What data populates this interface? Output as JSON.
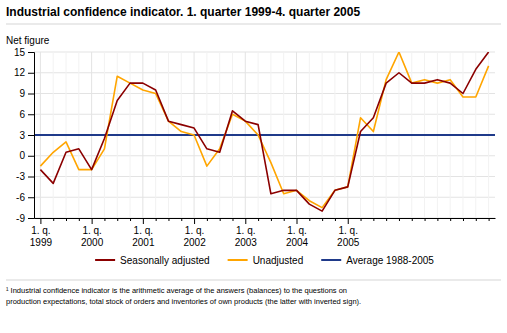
{
  "chart_data": {
    "type": "line",
    "title": "Industrial confidence indicator. 1. quarter 1999-4. quarter 2005",
    "y_label": "Net figure",
    "categories": [
      "1. q.\n1999",
      null,
      null,
      null,
      "1. q.\n2000",
      null,
      null,
      null,
      "1. q.\n2001",
      null,
      null,
      null,
      "1. q.\n2002",
      null,
      null,
      null,
      "1. q.\n2003",
      null,
      null,
      null,
      "1. q.\n2004",
      null,
      null,
      null,
      "1. q.\n2005",
      null,
      null,
      null,
      null,
      null,
      null,
      null,
      null,
      null,
      null,
      null
    ],
    "series": [
      {
        "name": "Seasonally adjusted",
        "color": "#8B0000",
        "values": [
          -2.0,
          -4.0,
          0.5,
          1.0,
          -2.0,
          2.5,
          8.0,
          10.5,
          10.5,
          9.5,
          5.0,
          4.5,
          4.0,
          1.0,
          0.5,
          6.5,
          5.0,
          4.5,
          -5.5,
          -5.0,
          -5.0,
          -7.0,
          -8.0,
          -5.0,
          -4.5,
          3.5,
          5.5,
          10.5,
          12.0,
          10.5,
          10.5,
          11.0,
          10.5,
          9.0,
          12.5,
          15.0
        ]
      },
      {
        "name": "Unadjusted",
        "color": "#FFA500",
        "values": [
          -1.5,
          0.5,
          2.0,
          -2.0,
          -2.0,
          1.0,
          11.5,
          10.5,
          9.5,
          9.0,
          5.0,
          3.5,
          3.0,
          -1.5,
          1.0,
          6.0,
          5.0,
          3.0,
          -1.0,
          -5.5,
          -5.0,
          -6.5,
          -7.5,
          -5.0,
          -4.5,
          5.5,
          3.5,
          11.0,
          15.0,
          10.5,
          11.0,
          10.5,
          11.0,
          8.5,
          8.5,
          13.0
        ]
      }
    ],
    "average": {
      "name": "Average 1988-2005",
      "value": 3,
      "color": "#1F3A8A"
    },
    "ylim": [
      -9,
      15
    ],
    "yticks": [
      -9,
      -6,
      -3,
      0,
      3,
      6,
      9,
      12,
      15
    ],
    "grid": true,
    "footnote": "¹ Industrial confidence indicator is the arithmetic average of the answers (balances) to the questions on\nproduction expectations, total stock of orders and inventories of own products (the latter with inverted sign)."
  }
}
